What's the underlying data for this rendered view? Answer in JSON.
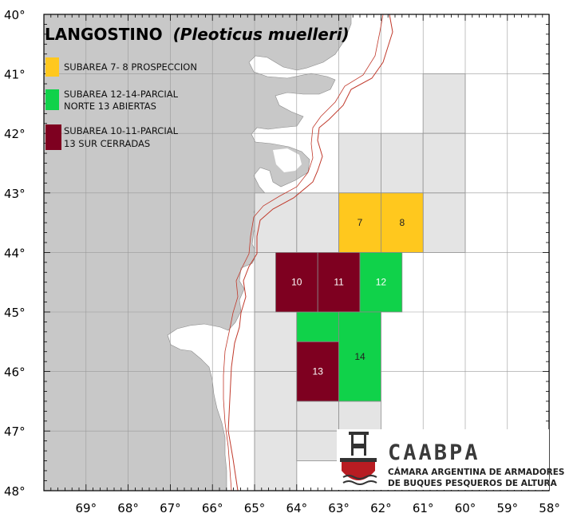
{
  "title": {
    "common_name": "LANGOSTINO",
    "scientific_name": "(Pleoticus muelleri)"
  },
  "legend": [
    {
      "color": "#FFC81E",
      "line1": "SUBAREA 7- 8 PROSPECCION",
      "line2": ""
    },
    {
      "color": "#10D24A",
      "line1": "SUBAREA 12-14-PARCIAL",
      "line2": "NORTE 13 ABIERTAS"
    },
    {
      "color": "#7E0020",
      "line1": "SUBAREA 10-11-PARCIAL",
      "line2": "13 SUR CERRADAS"
    }
  ],
  "colors": {
    "land": "#C8C8C8",
    "sea": "#FFFFFF",
    "grid_cell": "#E4E4E4",
    "prospeccion": "#FFC81E",
    "abiertas": "#10D24A",
    "cerradas": "#7E0020",
    "limit_line": "#C0392B"
  },
  "lat_labels": [
    "40°",
    "41°",
    "42°",
    "43°",
    "44°",
    "45°",
    "46°",
    "47°",
    "48°"
  ],
  "lon_labels": [
    "69°",
    "68°",
    "67°",
    "66°",
    "65°",
    "64°",
    "63°",
    "62°",
    "61°",
    "60°",
    "59°",
    "58°"
  ],
  "subareas": [
    {
      "id": "7",
      "lon_w": -63.0,
      "lon_e": -62.0,
      "lat_n": -43.0,
      "lat_s": -44.0,
      "status": "prospeccion",
      "label_color": "#222"
    },
    {
      "id": "8",
      "lon_w": -62.0,
      "lon_e": -61.0,
      "lat_n": -43.0,
      "lat_s": -44.0,
      "status": "prospeccion",
      "label_color": "#222"
    },
    {
      "id": "10",
      "lon_w": -64.5,
      "lon_e": -63.5,
      "lat_n": -44.0,
      "lat_s": -45.0,
      "status": "cerradas",
      "label_color": "#fff"
    },
    {
      "id": "11",
      "lon_w": -63.5,
      "lon_e": -62.5,
      "lat_n": -44.0,
      "lat_s": -45.0,
      "status": "cerradas",
      "label_color": "#fff"
    },
    {
      "id": "12",
      "lon_w": -62.5,
      "lon_e": -61.5,
      "lat_n": -44.0,
      "lat_s": -45.0,
      "status": "abiertas",
      "label_color": "#fff"
    },
    {
      "id": "13",
      "lon_w": -64.0,
      "lon_e": -63.0,
      "lat_n": -45.5,
      "lat_s": -46.5,
      "status": "cerradas",
      "label_color": "#fff"
    },
    {
      "id": "14",
      "lon_w": -63.0,
      "lon_e": -62.0,
      "lat_n": -45.0,
      "lat_s": -46.5,
      "status": "abiertas",
      "label_color": "#222"
    }
  ],
  "subarea_13_north": {
    "lon_w": -64.0,
    "lon_e": -63.0,
    "lat_n": -45.0,
    "lat_s": -45.5,
    "status": "abiertas"
  },
  "gray_cells": [
    {
      "lon_w": -61.0,
      "lon_e": -60.0,
      "lat_n": -41.0,
      "lat_s": -42.0
    },
    {
      "lon_w": -63.0,
      "lon_e": -62.0,
      "lat_n": -42.0,
      "lat_s": -43.0
    },
    {
      "lon_w": -62.0,
      "lon_e": -61.0,
      "lat_n": -42.0,
      "lat_s": -43.0
    },
    {
      "lon_w": -61.0,
      "lon_e": -60.0,
      "lat_n": -42.0,
      "lat_s": -43.0
    },
    {
      "lon_w": -65.0,
      "lon_e": -64.0,
      "lat_n": -43.0,
      "lat_s": -44.0
    },
    {
      "lon_w": -64.0,
      "lon_e": -63.0,
      "lat_n": -43.0,
      "lat_s": -44.0
    },
    {
      "lon_w": -61.0,
      "lon_e": -60.0,
      "lat_n": -43.0,
      "lat_s": -44.0
    },
    {
      "lon_w": -65.0,
      "lon_e": -64.5,
      "lat_n": -44.0,
      "lat_s": -45.0
    },
    {
      "lon_w": -65.0,
      "lon_e": -64.0,
      "lat_n": -45.0,
      "lat_s": -46.0
    },
    {
      "lon_w": -65.0,
      "lon_e": -64.0,
      "lat_n": -46.0,
      "lat_s": -47.0
    },
    {
      "lon_w": -64.0,
      "lon_e": -63.0,
      "lat_n": -46.5,
      "lat_s": -47.0
    },
    {
      "lon_w": -63.0,
      "lon_e": -62.0,
      "lat_n": -46.5,
      "lat_s": -47.0
    },
    {
      "lon_w": -65.0,
      "lon_e": -64.0,
      "lat_n": -47.0,
      "lat_s": -48.0
    },
    {
      "lon_w": -64.0,
      "lon_e": -63.0,
      "lat_n": -47.0,
      "lat_s": -47.5
    }
  ],
  "logo": {
    "name": "CAABPA",
    "line1": "CÁMARA ARGENTINA DE ARMADORES",
    "line2": "DE BUQUES PESQUEROS DE ALTURA",
    "icon": "fishing-boat-icon"
  }
}
